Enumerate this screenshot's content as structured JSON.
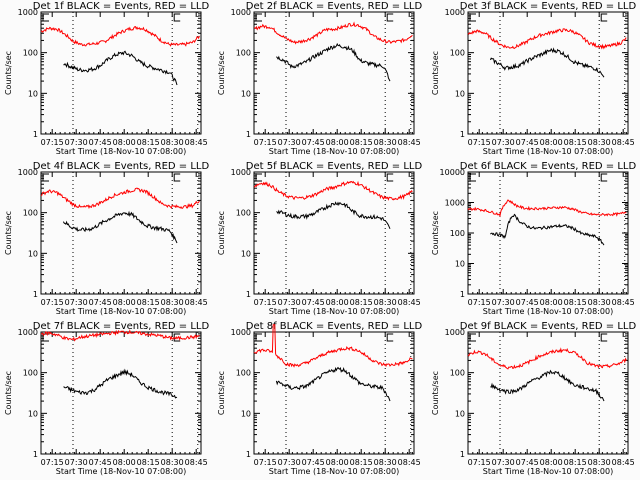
{
  "chart_data": {
    "type": "line",
    "layout": "3x3 grid",
    "xlabel": "Start Time (18-Nov-10 07:08:00)",
    "ylabel": "Counts/sec",
    "x_tick_labels": [
      "07:15",
      "07:30",
      "07:45",
      "08:00",
      "08:15",
      "08:30",
      "08:45"
    ],
    "x_range_minutes_after_0708": [
      0,
      100
    ],
    "legend": {
      "black": "Events",
      "red": "LLD"
    },
    "colors": {
      "events": "#000000",
      "lld": "#ff0000",
      "background": "#fbfbfb"
    },
    "x_sample_minutes": [
      0,
      5,
      10,
      15,
      20,
      25,
      30,
      35,
      40,
      45,
      50,
      55,
      60,
      65,
      70,
      75,
      80,
      85,
      90,
      95,
      99
    ],
    "panels": [
      {
        "title": "Det 1f BLACK = Events, RED = LLD",
        "y_ticks": [
          "1",
          "10",
          "100",
          "1000"
        ],
        "ylim": [
          1,
          1000
        ],
        "lld": [
          330,
          400,
          380,
          280,
          190,
          160,
          160,
          170,
          190,
          250,
          320,
          380,
          420,
          380,
          280,
          200,
          160,
          155,
          160,
          180,
          250
        ],
        "events": {
          "start": 14,
          "end": 85,
          "values": [
            55,
            45,
            38,
            37,
            40,
            50,
            70,
            90,
            100,
            85,
            60,
            48,
            42,
            37,
            33,
            16
          ]
        }
      },
      {
        "title": "Det 2f BLACK = Events, RED = LLD",
        "y_ticks": [
          "1",
          "10",
          "100",
          "1000"
        ],
        "ylim": [
          1,
          1000
        ],
        "lld": [
          380,
          450,
          430,
          300,
          220,
          180,
          190,
          220,
          280,
          370,
          380,
          420,
          500,
          480,
          380,
          250,
          200,
          180,
          190,
          210,
          280
        ],
        "events": {
          "start": 14,
          "end": 85,
          "values": [
            80,
            65,
            45,
            50,
            60,
            80,
            100,
            130,
            150,
            140,
            115,
            65,
            55,
            50,
            48,
            20
          ]
        }
      },
      {
        "title": "Det 3f BLACK = Events, RED = LLD",
        "y_ticks": [
          "1",
          "10",
          "100",
          "1000"
        ],
        "ylim": [
          1,
          1000
        ],
        "lld": [
          280,
          340,
          310,
          220,
          160,
          135,
          140,
          170,
          220,
          270,
          300,
          340,
          360,
          340,
          260,
          180,
          150,
          140,
          150,
          170,
          220
        ],
        "events": {
          "start": 14,
          "end": 85,
          "values": [
            70,
            55,
            42,
            45,
            50,
            65,
            80,
            95,
            115,
            110,
            85,
            60,
            50,
            45,
            40,
            25
          ]
        }
      },
      {
        "title": "Det 4f BLACK = Events, RED = LLD",
        "y_ticks": [
          "1",
          "10",
          "100",
          "1000"
        ],
        "ylim": [
          1,
          1000
        ],
        "lld": [
          280,
          340,
          310,
          220,
          160,
          135,
          140,
          160,
          200,
          260,
          300,
          340,
          370,
          340,
          250,
          170,
          145,
          140,
          140,
          150,
          200
        ],
        "events": {
          "start": 14,
          "end": 85,
          "values": [
            60,
            45,
            38,
            38,
            42,
            55,
            70,
            85,
            100,
            90,
            65,
            48,
            43,
            40,
            36,
            18
          ]
        }
      },
      {
        "title": "Det 5f BLACK = Events, RED = LLD",
        "y_ticks": [
          "1",
          "10",
          "100",
          "1000"
        ],
        "ylim": [
          1,
          1000
        ],
        "lld": [
          450,
          540,
          480,
          330,
          260,
          230,
          230,
          250,
          300,
          380,
          420,
          500,
          560,
          520,
          400,
          300,
          240,
          220,
          230,
          260,
          340
        ],
        "events": {
          "start": 14,
          "end": 85,
          "values": [
            110,
            95,
            82,
            80,
            82,
            95,
            120,
            150,
            175,
            160,
            110,
            85,
            80,
            78,
            72,
            40
          ]
        }
      },
      {
        "title": "Det 6f BLACK = Events, RED = LLD",
        "y_ticks": [
          "1",
          "10",
          "100",
          "1000",
          "10000"
        ],
        "ylim": [
          1,
          10000
        ],
        "lld": [
          600,
          620,
          560,
          480,
          400,
          1200,
          800,
          650,
          630,
          640,
          650,
          680,
          700,
          620,
          500,
          420,
          400,
          400,
          410,
          420,
          500
        ],
        "events": {
          "start": 14,
          "end": 85,
          "values": [
            100,
            90,
            75,
            400,
            220,
            160,
            140,
            150,
            160,
            170,
            170,
            140,
            95,
            85,
            75,
            40
          ]
        }
      },
      {
        "title": "Det 7f BLACK = Events, RED = LLD",
        "y_ticks": [
          "1",
          "10",
          "100",
          "1000"
        ],
        "ylim": [
          1,
          1000
        ],
        "lld": [
          900,
          950,
          850,
          700,
          650,
          750,
          800,
          850,
          900,
          950,
          1000,
          1000,
          950,
          900,
          850,
          800,
          720,
          700,
          720,
          750,
          800
        ],
        "events": {
          "start": 14,
          "end": 85,
          "values": [
            45,
            38,
            33,
            32,
            37,
            50,
            70,
            85,
            105,
            90,
            60,
            45,
            38,
            33,
            30,
            25
          ]
        }
      },
      {
        "title": "Det 8f BLACK = Events, RED = LLD",
        "y_ticks": [
          "1",
          "10",
          "100",
          "1000"
        ],
        "ylim": [
          1,
          1000
        ],
        "lld": [
          320,
          360,
          340,
          250,
          165,
          150,
          160,
          190,
          240,
          300,
          340,
          390,
          400,
          350,
          260,
          190,
          160,
          155,
          165,
          180,
          230
        ],
        "lld_spike": {
          "minute": 12,
          "value": 1000
        },
        "events": {
          "start": 14,
          "end": 85,
          "values": [
            60,
            50,
            42,
            43,
            47,
            62,
            85,
            105,
            125,
            115,
            80,
            55,
            48,
            45,
            42,
            20
          ]
        }
      },
      {
        "title": "Det 9f BLACK = Events, RED = LLD",
        "y_ticks": [
          "1",
          "10",
          "100",
          "1000"
        ],
        "ylim": [
          1,
          1000
        ],
        "lld": [
          270,
          330,
          300,
          210,
          150,
          135,
          140,
          160,
          200,
          260,
          300,
          340,
          360,
          330,
          250,
          170,
          145,
          140,
          150,
          170,
          210
        ],
        "events": {
          "start": 14,
          "end": 85,
          "values": [
            50,
            40,
            35,
            35,
            40,
            55,
            70,
            85,
            105,
            95,
            70,
            50,
            45,
            40,
            35,
            20
          ]
        }
      }
    ]
  }
}
